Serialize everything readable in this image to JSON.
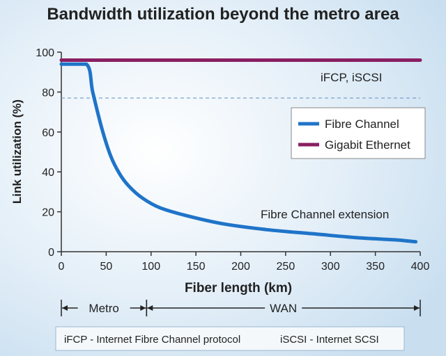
{
  "chart_data": {
    "type": "line",
    "title": "Bandwidth utilization beyond the metro area",
    "xlabel": "Fiber length (km)",
    "ylabel": "Link utilization (%)",
    "xlim": [
      0,
      400
    ],
    "ylim": [
      0,
      100
    ],
    "x_ticks": [
      "0",
      "50",
      "100",
      "150",
      "200",
      "250",
      "300",
      "350",
      "400"
    ],
    "y_ticks": [
      "0",
      "20",
      "40",
      "60",
      "80",
      "100"
    ],
    "grid": false,
    "legend_position": "right",
    "series": [
      {
        "name": "Fibre Channel",
        "color": "#1f74c8",
        "x": [
          0,
          28,
          35,
          45,
          55,
          65,
          75,
          90,
          110,
          140,
          180,
          230,
          280,
          330,
          370,
          395
        ],
        "y": [
          94,
          94,
          80,
          62,
          48,
          39,
          33,
          27,
          22,
          18,
          14,
          11,
          9,
          7,
          6,
          5
        ]
      },
      {
        "name": "Gigabit Ethernet",
        "color": "#8a1f63",
        "x": [
          0,
          400
        ],
        "y": [
          96,
          96
        ]
      }
    ],
    "reference_lines": [
      {
        "y": 77,
        "style": "dashed",
        "color": "#7aa3c8"
      }
    ],
    "annotations": {
      "ge_label": "iFCP, iSCSI",
      "fc_label": "Fibre Channel extension"
    },
    "ranges": [
      {
        "label": "Metro",
        "from": 0,
        "to": 95
      },
      {
        "label": "WAN",
        "from": 95,
        "to": 400
      }
    ],
    "footnote": {
      "left": "iFCP - Internet Fibre Channel protocol",
      "right": "iSCSI - Internet SCSI"
    }
  }
}
